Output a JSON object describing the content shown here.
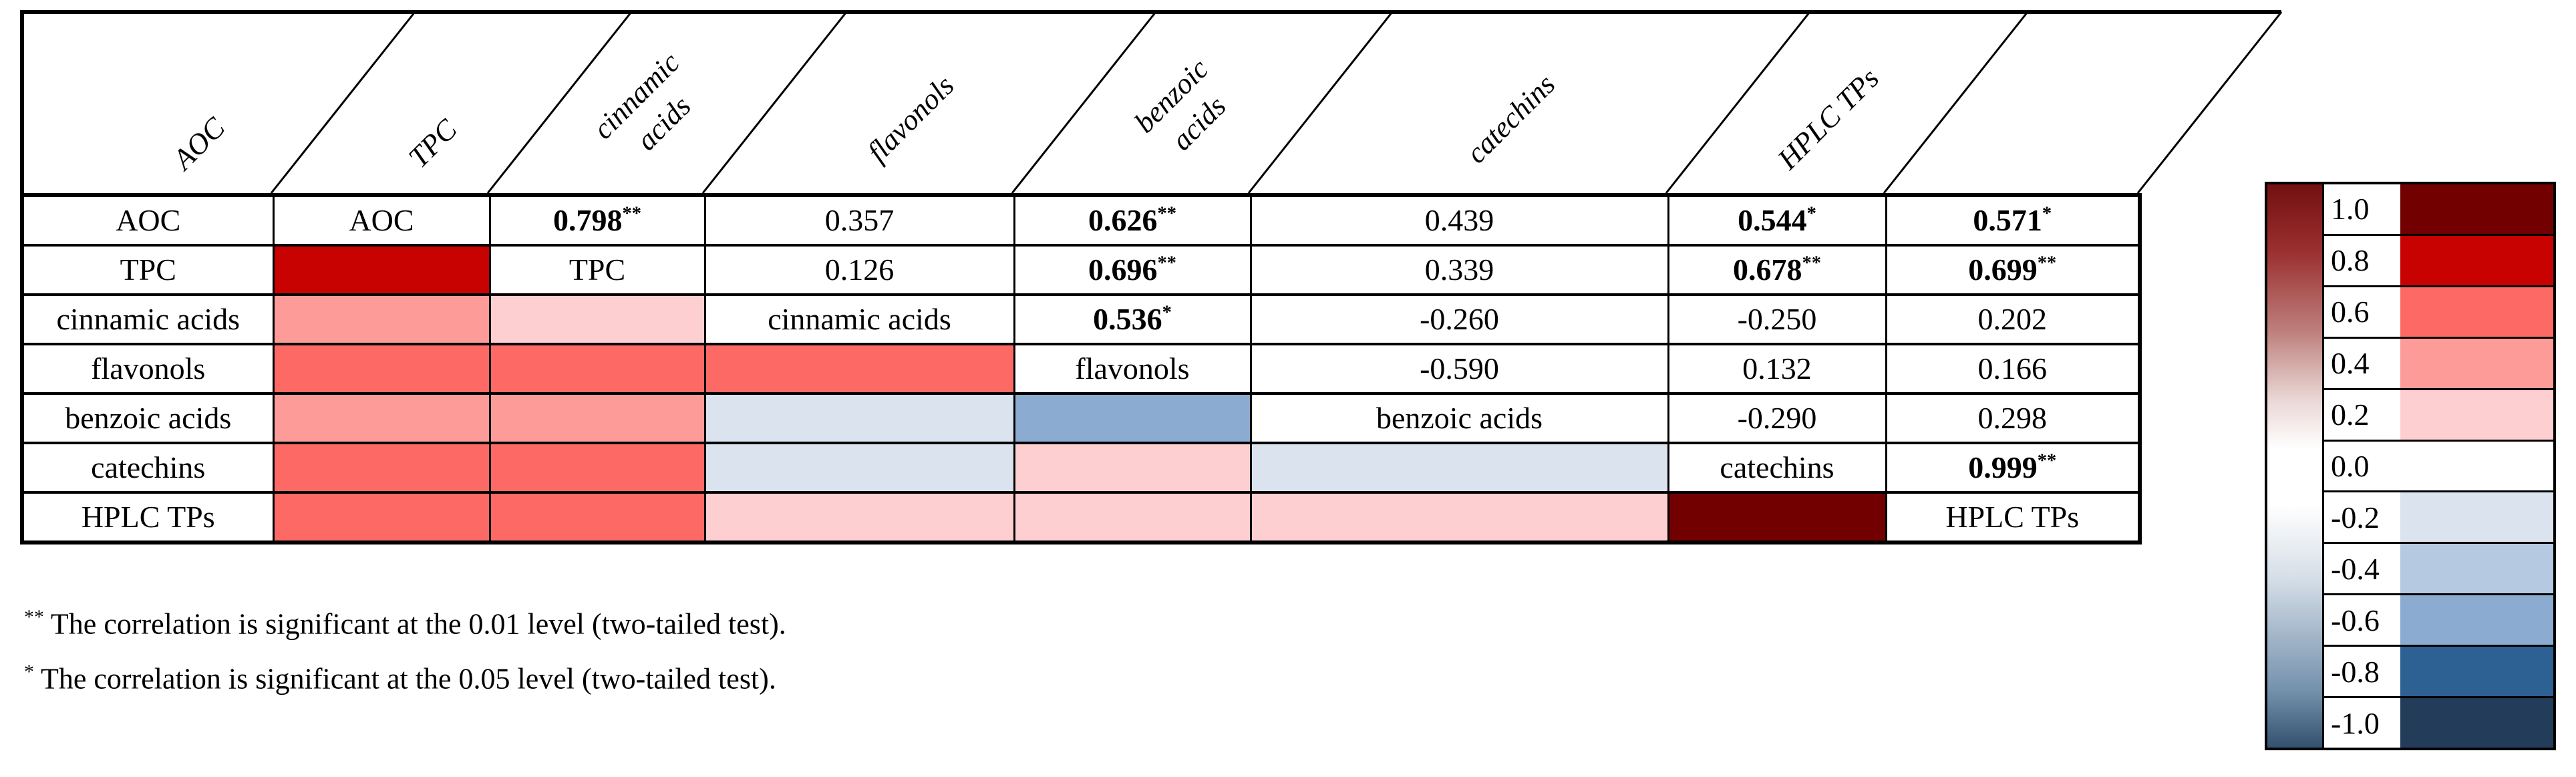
{
  "figure": {
    "table": {
      "columns": [
        {
          "label": "AOC"
        },
        {
          "label": "TPC"
        },
        {
          "label": "cinnamic acids",
          "lines": [
            "cinnamic",
            "acids"
          ]
        },
        {
          "label": "flavonols"
        },
        {
          "label": "benzoic acids",
          "lines": [
            "benzoic",
            "acids"
          ]
        },
        {
          "label": "catechins"
        },
        {
          "label": "HPLC TPs"
        }
      ],
      "rows": [
        {
          "label": "AOC",
          "cells": [
            {
              "t": "d",
              "v": "AOC"
            },
            {
              "t": "v",
              "v": "0.798",
              "m": "**",
              "b": true
            },
            {
              "t": "v",
              "v": "0.357"
            },
            {
              "t": "v",
              "v": "0.626",
              "m": "**",
              "b": true
            },
            {
              "t": "v",
              "v": "0.439"
            },
            {
              "t": "v",
              "v": "0.544",
              "m": "*",
              "b": true
            },
            {
              "t": "v",
              "v": "0.571",
              "m": "*",
              "b": true
            }
          ]
        },
        {
          "label": "TPC",
          "cells": [
            {
              "t": "c",
              "band": "0.8"
            },
            {
              "t": "d",
              "v": "TPC"
            },
            {
              "t": "v",
              "v": "0.126"
            },
            {
              "t": "v",
              "v": "0.696",
              "m": "**",
              "b": true
            },
            {
              "t": "v",
              "v": "0.339"
            },
            {
              "t": "v",
              "v": "0.678",
              "m": "**",
              "b": true
            },
            {
              "t": "v",
              "v": "0.699",
              "m": "**",
              "b": true
            }
          ]
        },
        {
          "label": "cinnamic acids",
          "cells": [
            {
              "t": "c",
              "band": "0.4"
            },
            {
              "t": "c",
              "band": "0.2"
            },
            {
              "t": "d",
              "v": "cinnamic acids"
            },
            {
              "t": "v",
              "v": "0.536",
              "m": "*",
              "b": true
            },
            {
              "t": "v",
              "v": "-0.260"
            },
            {
              "t": "v",
              "v": "-0.250"
            },
            {
              "t": "v",
              "v": "0.202"
            }
          ]
        },
        {
          "label": "flavonols",
          "cells": [
            {
              "t": "c",
              "band": "0.6"
            },
            {
              "t": "c",
              "band": "0.6"
            },
            {
              "t": "c",
              "band": "0.6"
            },
            {
              "t": "d",
              "v": "flavonols"
            },
            {
              "t": "v",
              "v": "-0.590"
            },
            {
              "t": "v",
              "v": "0.132"
            },
            {
              "t": "v",
              "v": "0.166"
            }
          ]
        },
        {
          "label": "benzoic acids",
          "cells": [
            {
              "t": "c",
              "band": "0.4"
            },
            {
              "t": "c",
              "band": "0.4"
            },
            {
              "t": "c",
              "band": "-0.2"
            },
            {
              "t": "c",
              "band": "-0.6"
            },
            {
              "t": "d",
              "v": "benzoic acids"
            },
            {
              "t": "v",
              "v": "-0.290"
            },
            {
              "t": "v",
              "v": "0.298"
            }
          ]
        },
        {
          "label": "catechins",
          "cells": [
            {
              "t": "c",
              "band": "0.6"
            },
            {
              "t": "c",
              "band": "0.6"
            },
            {
              "t": "c",
              "band": "-0.2"
            },
            {
              "t": "c",
              "band": "0.2"
            },
            {
              "t": "c",
              "band": "-0.2"
            },
            {
              "t": "d",
              "v": "catechins"
            },
            {
              "t": "v",
              "v": "0.999",
              "m": "**",
              "b": true
            }
          ]
        },
        {
          "label": "HPLC TPs",
          "cells": [
            {
              "t": "c",
              "band": "0.6"
            },
            {
              "t": "c",
              "band": "0.6"
            },
            {
              "t": "c",
              "band": "0.2"
            },
            {
              "t": "c",
              "band": "0.2"
            },
            {
              "t": "c",
              "band": "0.2"
            },
            {
              "t": "c",
              "band": "1.0"
            },
            {
              "t": "d",
              "v": "HPLC TPs"
            }
          ]
        }
      ]
    },
    "footnotes": [
      {
        "marker": "**",
        "text": "The correlation is significant at the 0.01 level (two-tailed test)."
      },
      {
        "marker": "*",
        "text": "The correlation is significant at the 0.05 level (two-tailed test)."
      }
    ],
    "legend": {
      "entries": [
        {
          "label": "1.0",
          "band": "1.0"
        },
        {
          "label": "0.8",
          "band": "0.8"
        },
        {
          "label": "0.6",
          "band": "0.6"
        },
        {
          "label": "0.4",
          "band": "0.4"
        },
        {
          "label": "0.2",
          "band": "0.2"
        },
        {
          "label": "0.0",
          "band": "0.0"
        },
        {
          "label": "-0.2",
          "band": "-0.2"
        },
        {
          "label": "-0.4",
          "band": "-0.4"
        },
        {
          "label": "-0.6",
          "band": "-0.6"
        },
        {
          "label": "-0.8",
          "band": "-0.8"
        },
        {
          "label": "-1.0",
          "band": "-1.0"
        }
      ],
      "colors": {
        "1.0": "#730001",
        "0.8": "#c80101",
        "0.6": "#fd6a65",
        "0.4": "#fc9b97",
        "0.2": "#fecfd1",
        "0.0": "#ffffff",
        "-0.2": "#dae3ee",
        "-0.4": "#b5c9e0",
        "-0.6": "#8cabd0",
        "-0.8": "#2d6093",
        "-1.0": "#233c59"
      }
    }
  },
  "chart_data": {
    "type": "heatmap",
    "title": "",
    "variables": [
      "AOC",
      "TPC",
      "cinnamic acids",
      "flavonols",
      "benzoic acids",
      "catechins",
      "HPLC TPs"
    ],
    "matrix_upper": {
      "AOC": {
        "TPC": "0.798**",
        "cinnamic acids": "0.357",
        "flavonols": "0.626**",
        "benzoic acids": "0.439",
        "catechins": "0.544*",
        "HPLC TPs": "0.571*"
      },
      "TPC": {
        "cinnamic acids": "0.126",
        "flavonols": "0.696**",
        "benzoic acids": "0.339",
        "catechins": "0.678**",
        "HPLC TPs": "0.699**"
      },
      "cinnamic acids": {
        "flavonols": "0.536*",
        "benzoic acids": "-0.260",
        "catechins": "-0.250",
        "HPLC TPs": "0.202"
      },
      "flavonols": {
        "benzoic acids": "-0.590",
        "catechins": "0.132",
        "HPLC TPs": "0.166"
      },
      "benzoic acids": {
        "catechins": "-0.290",
        "HPLC TPs": "0.298"
      },
      "catechins": {
        "HPLC TPs": "0.999**"
      }
    },
    "color_scale": {
      "ticks": [
        1.0,
        0.8,
        0.6,
        0.4,
        0.2,
        0.0,
        -0.2,
        -0.4,
        -0.6,
        -0.8,
        -1.0
      ],
      "range": [
        -1.0,
        1.0
      ],
      "legend_position": "right"
    },
    "significance_notes": [
      "** The correlation is significant at the 0.01 level (two-tailed test).",
      "* The correlation is significant at the 0.05 level (two-tailed test)."
    ]
  }
}
